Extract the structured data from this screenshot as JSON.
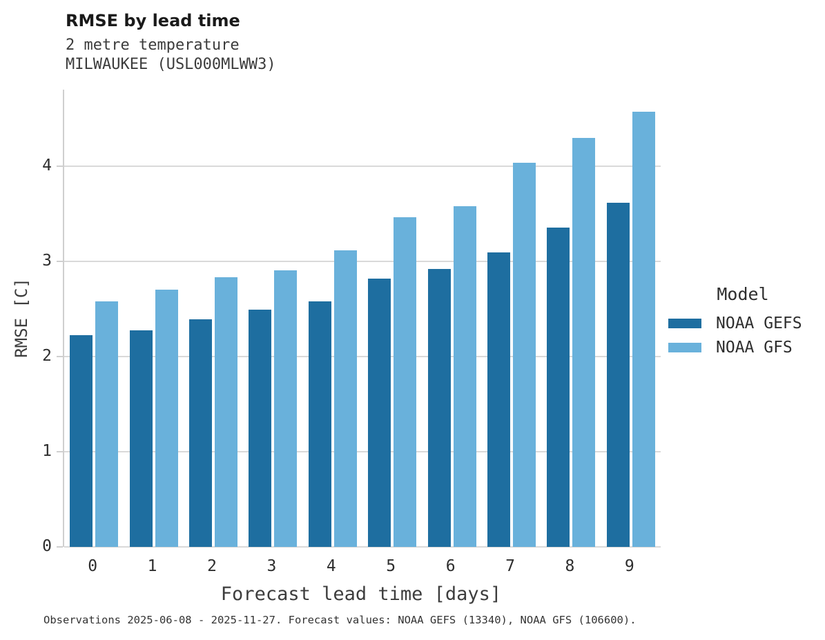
{
  "header": {
    "title": "RMSE by lead time",
    "subtitle_line1": "2 metre temperature",
    "subtitle_line2": "MILWAUKEE (USL000MLWW3)"
  },
  "chart_data": {
    "type": "bar",
    "title": "RMSE by lead time",
    "subtitle": [
      "2 metre temperature",
      "MILWAUKEE (USL000MLWW3)"
    ],
    "categories": [
      "0",
      "1",
      "2",
      "3",
      "4",
      "5",
      "6",
      "7",
      "8",
      "9"
    ],
    "series": [
      {
        "name": "NOAA GEFS",
        "color": "#1e6ea0",
        "values": [
          2.22,
          2.27,
          2.39,
          2.49,
          2.58,
          2.82,
          2.92,
          3.09,
          3.35,
          3.61
        ]
      },
      {
        "name": "NOAA GFS",
        "color": "#69b1db",
        "values": [
          2.58,
          2.7,
          2.83,
          2.9,
          3.11,
          3.46,
          3.58,
          4.03,
          4.29,
          4.57
        ]
      }
    ],
    "xlabel": "Forecast lead time [days]",
    "ylabel": "RMSE [C]",
    "yticks": [
      0,
      1,
      2,
      3,
      4
    ],
    "ylim": [
      0,
      4.8
    ],
    "grid": true,
    "legend_title": "Model",
    "legend_position": "right"
  },
  "legend": {
    "title": "Model"
  },
  "footer": {
    "note": "Observations 2025-06-08 - 2025-11-27. Forecast values: NOAA GEFS (13340), NOAA GFS (106600)."
  },
  "colors": {
    "bar_dark": "#1e6ea0",
    "bar_light": "#69b1db",
    "gridline": "#d9d9d9",
    "axis_line": "#cfcfcf",
    "text_dark": "#1a1a1a",
    "text_gray": "#3c3c3c"
  }
}
